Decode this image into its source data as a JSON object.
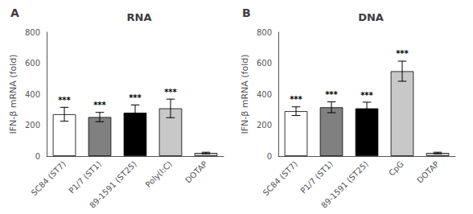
{
  "chart_data": [
    {
      "type": "bar",
      "title": "RNA",
      "panel_label": "A",
      "categories": [
        "SC84 (ST7)",
        "P1/7 (ST1)",
        "89-1591 (ST25)",
        "Poly(I:C)",
        "DOTAP"
      ],
      "values": [
        270,
        252,
        280,
        308,
        20
      ],
      "errors": [
        45,
        30,
        50,
        60,
        5
      ],
      "colors": [
        "#ffffff",
        "#808080",
        "#000000",
        "#c8c8c8",
        "#d0d0d0"
      ],
      "significance": [
        "***",
        "***",
        "***",
        "***",
        null
      ],
      "ylabel": "IFN-β mRNA (fold)",
      "ylim": [
        0,
        800
      ],
      "yticks": [
        0,
        200,
        400,
        600,
        800
      ]
    },
    {
      "type": "bar",
      "title": "DNA",
      "panel_label": "B",
      "categories": [
        "SC84 (ST7)",
        "P1/7 (ST1)",
        "89-1591 (ST25)",
        "CpG",
        "DOTAP"
      ],
      "values": [
        290,
        315,
        308,
        548,
        20
      ],
      "errors": [
        28,
        35,
        40,
        65,
        5
      ],
      "colors": [
        "#ffffff",
        "#808080",
        "#000000",
        "#c8c8c8",
        "#d0d0d0"
      ],
      "significance": [
        "***",
        "***",
        "***",
        "***",
        null
      ],
      "ylabel": "IFN-β mRNA (fold)",
      "ylim": [
        0,
        800
      ],
      "yticks": [
        0,
        200,
        400,
        600,
        800
      ]
    }
  ]
}
